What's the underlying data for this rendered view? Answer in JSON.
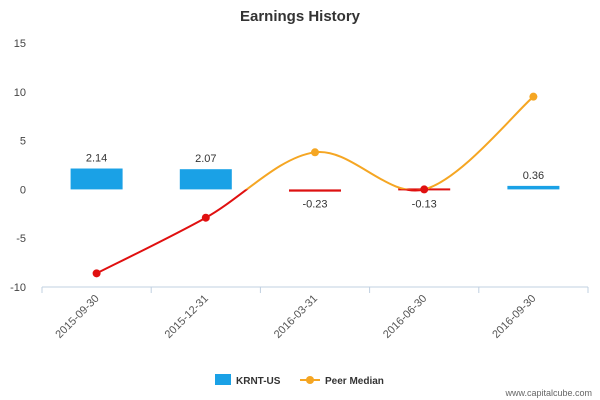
{
  "chart_data": {
    "type": "bar",
    "title": "Earnings History",
    "xlabel": "",
    "ylabel": "",
    "ylim": [
      -10,
      15
    ],
    "yticks": [
      -10,
      -5,
      0,
      5,
      10,
      15
    ],
    "categories": [
      "2015-09-30",
      "2015-12-31",
      "2016-03-31",
      "2016-06-30",
      "2016-09-30"
    ],
    "series": [
      {
        "name": "KRNT-US",
        "kind": "bar",
        "color": "#1aa1e6",
        "negative_color": "#dd1111",
        "values": [
          2.14,
          2.07,
          -0.23,
          -0.13,
          0.36
        ],
        "labels": [
          "2.14",
          "2.07",
          "-0.23",
          "-0.13",
          "0.36"
        ]
      },
      {
        "name": "Peer Median",
        "kind": "line",
        "color": "#f5a623",
        "below_zero_color": "#e01010",
        "values": [
          -8.6,
          -2.9,
          3.8,
          0.0,
          9.5
        ]
      }
    ],
    "legend_position": "bottom-center",
    "grid": false
  },
  "credit": "www.capitalcube.com"
}
